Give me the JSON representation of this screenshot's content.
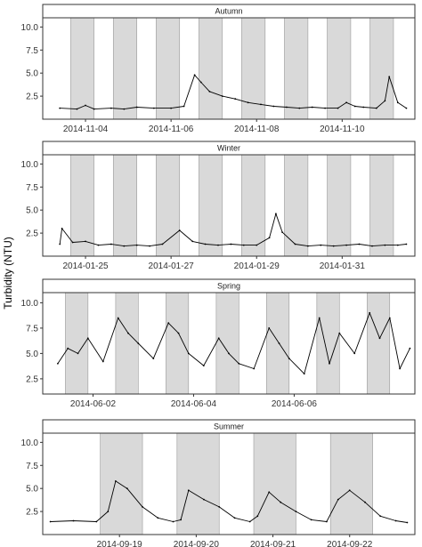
{
  "figure": {
    "ylabel": "Turbidity (NTU)",
    "colors": {
      "shade": "#d9d9d9",
      "shade_stroke": "#9a9a9a",
      "line": "#000000",
      "strip_fill": "#ffffff",
      "frame": "#333333"
    }
  },
  "chart_data": [
    {
      "type": "line",
      "title": "Autumn",
      "ylim": [
        0,
        11
      ],
      "yticks": [
        2.5,
        5.0,
        7.5,
        10.0
      ],
      "ytick_labels": [
        "2.5",
        "5.0",
        "7.5",
        "10.0"
      ],
      "x_start": "2014-11-03 00:00",
      "xlim_days": [
        0,
        8.7
      ],
      "xticks_days": [
        1,
        3,
        5,
        7
      ],
      "xtick_labels": [
        "2014-11-04",
        "2014-11-06",
        "2014-11-08",
        "2014-11-10"
      ],
      "shaded_periods_days": [
        [
          0.65,
          1.2
        ],
        [
          1.65,
          2.2
        ],
        [
          2.65,
          3.2
        ],
        [
          3.65,
          4.2
        ],
        [
          4.65,
          5.2
        ],
        [
          5.65,
          6.2
        ],
        [
          6.65,
          7.2
        ],
        [
          7.65,
          8.2
        ]
      ],
      "x_days": [
        0.4,
        0.8,
        1.0,
        1.2,
        1.6,
        1.9,
        2.2,
        2.6,
        3.0,
        3.3,
        3.55,
        3.7,
        3.9,
        4.2,
        4.5,
        4.8,
        5.1,
        5.4,
        5.7,
        6.0,
        6.3,
        6.6,
        6.9,
        7.1,
        7.3,
        7.5,
        7.8,
        8.0,
        8.1,
        8.3,
        8.5
      ],
      "values": [
        1.2,
        1.1,
        1.5,
        1.1,
        1.2,
        1.1,
        1.3,
        1.2,
        1.2,
        1.4,
        4.8,
        4.0,
        3.0,
        2.5,
        2.2,
        1.8,
        1.6,
        1.4,
        1.3,
        1.2,
        1.3,
        1.2,
        1.2,
        1.8,
        1.4,
        1.3,
        1.2,
        2.0,
        4.6,
        1.8,
        1.2
      ]
    },
    {
      "type": "line",
      "title": "Winter",
      "ylim": [
        0,
        11
      ],
      "yticks": [
        2.5,
        5.0,
        7.5,
        10.0
      ],
      "ytick_labels": [
        "2.5",
        "5.0",
        "7.5",
        "10.0"
      ],
      "x_start": "2014-01-24 00:00",
      "xlim_days": [
        0,
        8.7
      ],
      "xticks_days": [
        1,
        3,
        5,
        7
      ],
      "xtick_labels": [
        "2014-01-25",
        "2014-01-27",
        "2014-01-29",
        "2014-01-31"
      ],
      "shaded_periods_days": [
        [
          0.65,
          1.2
        ],
        [
          1.65,
          2.2
        ],
        [
          2.65,
          3.2
        ],
        [
          3.65,
          4.2
        ],
        [
          4.65,
          5.2
        ],
        [
          5.65,
          6.2
        ],
        [
          6.65,
          7.2
        ],
        [
          7.65,
          8.2
        ]
      ],
      "x_days": [
        0.4,
        0.45,
        0.7,
        1.0,
        1.3,
        1.6,
        1.9,
        2.2,
        2.5,
        2.8,
        3.2,
        3.5,
        3.8,
        4.1,
        4.4,
        4.7,
        5.0,
        5.3,
        5.45,
        5.6,
        5.9,
        6.2,
        6.5,
        6.8,
        7.1,
        7.4,
        7.7,
        8.0,
        8.3,
        8.5
      ],
      "values": [
        1.3,
        3.0,
        1.5,
        1.6,
        1.2,
        1.3,
        1.1,
        1.2,
        1.1,
        1.3,
        2.8,
        1.6,
        1.3,
        1.2,
        1.3,
        1.2,
        1.2,
        2.0,
        4.6,
        2.6,
        1.3,
        1.1,
        1.2,
        1.1,
        1.2,
        1.3,
        1.1,
        1.2,
        1.2,
        1.3
      ]
    },
    {
      "type": "line",
      "title": "Spring",
      "ylim": [
        1,
        11
      ],
      "yticks": [
        2.5,
        5.0,
        7.5,
        10.0
      ],
      "ytick_labels": [
        "2.5",
        "5.0",
        "7.5",
        "10.0"
      ],
      "x_start": "2014-06-01 00:00",
      "xlim_days": [
        0,
        7.4
      ],
      "xticks_days": [
        1,
        3,
        5
      ],
      "xtick_labels": [
        "2014-06-02",
        "2014-06-04",
        "2014-06-06"
      ],
      "shaded_periods_days": [
        [
          0.45,
          0.9
        ],
        [
          1.45,
          1.9
        ],
        [
          2.45,
          2.9
        ],
        [
          3.45,
          3.9
        ],
        [
          4.45,
          4.9
        ],
        [
          5.45,
          5.9
        ],
        [
          6.45,
          6.9
        ]
      ],
      "x_days": [
        0.3,
        0.5,
        0.7,
        0.9,
        1.2,
        1.5,
        1.7,
        1.9,
        2.2,
        2.5,
        2.7,
        2.9,
        3.2,
        3.5,
        3.7,
        3.9,
        4.2,
        4.5,
        4.7,
        4.9,
        5.2,
        5.5,
        5.7,
        5.9,
        6.2,
        6.5,
        6.7,
        6.9,
        7.1,
        7.3
      ],
      "values": [
        4.0,
        5.5,
        5.0,
        6.5,
        4.2,
        8.5,
        7.0,
        6.0,
        4.5,
        8.0,
        7.0,
        5.0,
        3.8,
        6.5,
        5.0,
        4.0,
        3.5,
        7.5,
        6.0,
        4.5,
        3.0,
        8.5,
        4.0,
        7.0,
        5.0,
        9.0,
        6.5,
        8.5,
        3.5,
        5.5
      ]
    },
    {
      "type": "line",
      "title": "Summer",
      "ylim": [
        0,
        11
      ],
      "yticks": [
        2.5,
        5.0,
        7.5,
        10.0
      ],
      "ytick_labels": [
        "2.5",
        "5.0",
        "7.5",
        "10.0"
      ],
      "x_start": "2014-09-18 00:00",
      "xlim_days": [
        0,
        4.85
      ],
      "xticks_days": [
        1,
        2,
        3,
        4
      ],
      "xtick_labels": [
        "2014-09-19",
        "2014-09-20",
        "2014-09-21",
        "2014-09-22"
      ],
      "shaded_periods_days": [
        [
          0.75,
          1.3
        ],
        [
          1.75,
          2.3
        ],
        [
          2.75,
          3.3
        ],
        [
          3.75,
          4.3
        ]
      ],
      "x_days": [
        0.1,
        0.4,
        0.7,
        0.85,
        0.95,
        1.1,
        1.3,
        1.5,
        1.7,
        1.8,
        1.9,
        2.1,
        2.3,
        2.5,
        2.7,
        2.8,
        2.95,
        3.1,
        3.3,
        3.5,
        3.7,
        3.85,
        4.0,
        4.2,
        4.4,
        4.6,
        4.75
      ],
      "values": [
        1.4,
        1.5,
        1.4,
        2.5,
        5.8,
        5.0,
        3.0,
        1.8,
        1.4,
        1.6,
        4.8,
        3.8,
        3.0,
        1.8,
        1.4,
        2.0,
        4.6,
        3.5,
        2.5,
        1.6,
        1.4,
        3.8,
        4.8,
        3.5,
        2.0,
        1.5,
        1.3
      ]
    }
  ]
}
